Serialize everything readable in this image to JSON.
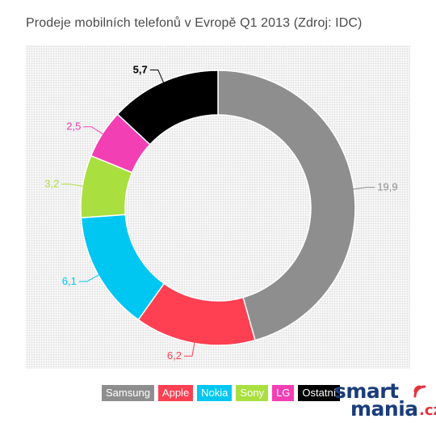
{
  "chart_data": {
    "type": "donut",
    "title": "Prodeje mobilních telefonů v Evropě Q1 2013 (Zdroj: IDC)",
    "categories": [
      "Samsung",
      "Apple",
      "Nokia",
      "Sony",
      "LG",
      "Ostatní"
    ],
    "values": [
      19.9,
      6.2,
      6.1,
      3.2,
      2.5,
      5.7
    ],
    "value_labels": [
      "19,9",
      "6,2",
      "6,1",
      "3,2",
      "2,5",
      "5,7"
    ],
    "colors": [
      "#8e8e8e",
      "#ff3f52",
      "#00c6f2",
      "#a9df3f",
      "#f33fb4",
      "#000000"
    ],
    "label_colors": [
      "#8e8e8e",
      "#ff3f52",
      "#00c6f2",
      "#a9df3f",
      "#f33fb4",
      "#000000"
    ],
    "legend_position": "bottom-right"
  },
  "logo": {
    "smart": "smart",
    "mania": "mania",
    "cz": ".cz"
  }
}
